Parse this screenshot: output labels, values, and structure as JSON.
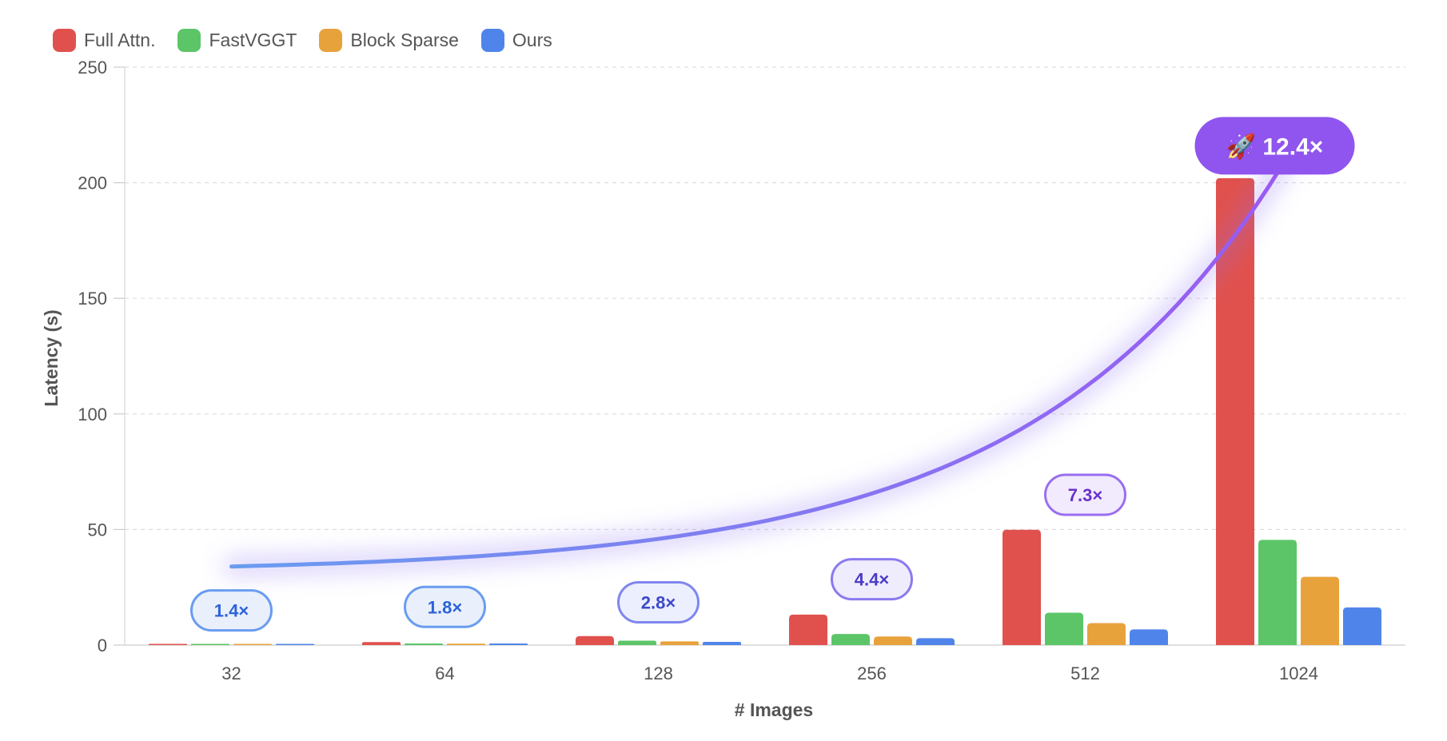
{
  "chart_data": {
    "type": "bar",
    "title": "",
    "xlabel": "# Images",
    "ylabel": "Latency (s)",
    "ylim": [
      0,
      250
    ],
    "yticks": [
      "0",
      "50",
      "100",
      "150",
      "200",
      "250"
    ],
    "categories": [
      "32",
      "64",
      "128",
      "256",
      "512",
      "1024"
    ],
    "grid": true,
    "legend_position": "top-left",
    "series": [
      {
        "name": "Full Attn.",
        "color": "#e0514d",
        "values": [
          0.3,
          1.3,
          3.9,
          13.2,
          49.9,
          202.0
        ]
      },
      {
        "name": "FastVGGT",
        "color": "#5cc568",
        "values": [
          0.2,
          0.7,
          1.9,
          4.8,
          14.0,
          45.5
        ]
      },
      {
        "name": "Block Sparse",
        "color": "#e8a23c",
        "values": [
          0.2,
          0.6,
          1.6,
          3.7,
          9.5,
          29.5
        ]
      },
      {
        "name": "Ours",
        "color": "#4f85ea",
        "values": [
          0.2,
          0.7,
          1.4,
          3.0,
          6.8,
          16.3
        ]
      }
    ],
    "speedup_labels": [
      "1.4×",
      "1.8×",
      "2.8×",
      "4.4×",
      "7.3×",
      "🚀 12.4×"
    ],
    "speedup_values": [
      1.4,
      1.8,
      2.8,
      4.4,
      7.3,
      12.4
    ],
    "trend_line": {
      "colors": [
        "#6a9cf0",
        "#9a5af2"
      ]
    }
  }
}
